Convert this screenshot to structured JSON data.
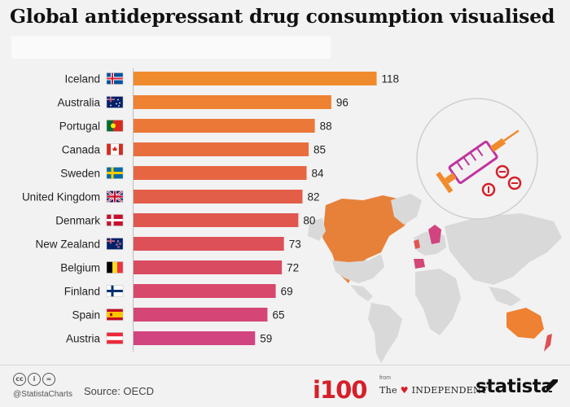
{
  "title": "Global antidepressant drug consumption visualised",
  "chart_data": {
    "type": "bar",
    "orientation": "horizontal",
    "title": "Global antidepressant drug consumption visualised",
    "categories": [
      "Iceland",
      "Australia",
      "Portugal",
      "Canada",
      "Sweden",
      "United Kingdom",
      "Denmark",
      "New Zealand",
      "Belgium",
      "Finland",
      "Spain",
      "Austria"
    ],
    "values": [
      118,
      96,
      88,
      85,
      84,
      82,
      80,
      73,
      72,
      69,
      65,
      59
    ],
    "bar_colors": [
      "#f08b2d",
      "#ee8132",
      "#eb7837",
      "#e96e3d",
      "#e66642",
      "#e35e49",
      "#e0574f",
      "#dd5057",
      "#d94b61",
      "#d7486b",
      "#d44675",
      "#d2447f"
    ],
    "xlabel": "",
    "ylabel": "",
    "grid": false,
    "legend": "none"
  },
  "flags": [
    "iceland-flag-icon",
    "australia-flag-icon",
    "portugal-flag-icon",
    "canada-flag-icon",
    "sweden-flag-icon",
    "uk-flag-icon",
    "denmark-flag-icon",
    "new-zealand-flag-icon",
    "belgium-flag-icon",
    "finland-flag-icon",
    "spain-flag-icon",
    "austria-flag-icon"
  ],
  "illustration": {
    "syringe": "syringe-icon",
    "pills": "pills-icon",
    "map": "world-map"
  },
  "footer": {
    "handle": "@StatistaCharts",
    "source": "Source: OECD",
    "i100": "i100",
    "from": "from",
    "independent": "INDEPENDENT",
    "statista": "statista"
  },
  "colors": {
    "background": "#f2f2f2",
    "map_gray": "#d9d9d9",
    "accent_orange": "#f08b2d",
    "accent_magenta": "#d2447f"
  }
}
